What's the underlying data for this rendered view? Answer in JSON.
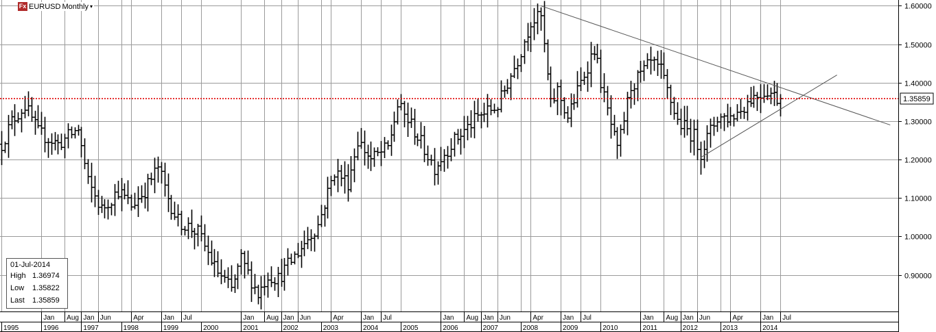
{
  "window": {
    "symbol": "EURUSD",
    "timeframe": "Monthly",
    "logo_text": "Fx",
    "dropdown_glyph": "▾"
  },
  "info_panel": {
    "date": "01-Jul-2014",
    "rows": [
      {
        "label": "High",
        "value": "1.36974"
      },
      {
        "label": "Low",
        "value": "1.35822"
      },
      {
        "label": "Last",
        "value": "1.35859"
      }
    ]
  },
  "colors": {
    "background": "#ffffff",
    "grid": "#9a9a9a",
    "bars": "#000000",
    "price_line": "#e00000",
    "trendline": "#555555"
  },
  "chart_data": {
    "type": "ohlc",
    "instrument": "EURUSD",
    "interval": "monthly",
    "price_axis": {
      "side": "right",
      "range": [
        0.805,
        1.615
      ],
      "ticks": [
        0.9,
        1.0,
        1.1,
        1.2,
        1.3,
        1.4,
        1.5,
        1.6
      ],
      "tick_labels": [
        "0.90000",
        "1.00000",
        "1.10000",
        "1.20000",
        "1.30000",
        "1.40000",
        "1.50000",
        "1.60000"
      ]
    },
    "time_axis": {
      "start": "1995-01",
      "end": "2017-06",
      "years": [
        "1995",
        "1996",
        "1997",
        "1998",
        "1999",
        "2000",
        "2001",
        "2002",
        "2003",
        "2004",
        "2005",
        "2006",
        "2007",
        "2008",
        "2009",
        "2010",
        "2011",
        "2012",
        "2013",
        "2014"
      ],
      "month_labels": [
        {
          "date": "1996-01",
          "label": "Jan"
        },
        {
          "date": "1996-08",
          "label": "Aug"
        },
        {
          "date": "1997-01",
          "label": "Jan"
        },
        {
          "date": "1997-06",
          "label": "Jun"
        },
        {
          "date": "1998-04",
          "label": "Apr"
        },
        {
          "date": "1999-01",
          "label": "Jan"
        },
        {
          "date": "1999-07",
          "label": "Jul"
        },
        {
          "date": "2001-01",
          "label": "Jan"
        },
        {
          "date": "2001-08",
          "label": "Aug"
        },
        {
          "date": "2002-01",
          "label": "Jan"
        },
        {
          "date": "2002-06",
          "label": "Jun"
        },
        {
          "date": "2003-04",
          "label": "Apr"
        },
        {
          "date": "2004-01",
          "label": "Jan"
        },
        {
          "date": "2004-07",
          "label": "Jul"
        },
        {
          "date": "2006-01",
          "label": "Jan"
        },
        {
          "date": "2006-08",
          "label": "Aug"
        },
        {
          "date": "2007-01",
          "label": "Jan"
        },
        {
          "date": "2007-06",
          "label": "Jun"
        },
        {
          "date": "2008-04",
          "label": "Apr"
        },
        {
          "date": "2009-01",
          "label": "Jan"
        },
        {
          "date": "2009-07",
          "label": "Jul"
        },
        {
          "date": "2011-01",
          "label": "Jan"
        },
        {
          "date": "2011-08",
          "label": "Aug"
        },
        {
          "date": "2012-01",
          "label": "Jan"
        },
        {
          "date": "2012-06",
          "label": "Jun"
        },
        {
          "date": "2013-04",
          "label": "Apr"
        },
        {
          "date": "2014-01",
          "label": "Jan"
        },
        {
          "date": "2014-07",
          "label": "Jul"
        }
      ]
    },
    "last_price": {
      "value": 1.35859,
      "label": "1.35859"
    },
    "trendlines": [
      {
        "name": "resistance",
        "from": {
          "date": "2008-07",
          "price": 1.6
        },
        "to": {
          "date": "2017-04",
          "price": 1.29
        }
      },
      {
        "name": "support",
        "from": {
          "date": "2012-07",
          "price": 1.205
        },
        "to": {
          "date": "2015-12",
          "price": 1.42
        }
      }
    ],
    "anchors": [
      {
        "date": "1995-01",
        "price": 1.24
      },
      {
        "date": "1995-04",
        "price": 1.3
      },
      {
        "date": "1995-08",
        "price": 1.34
      },
      {
        "date": "1995-12",
        "price": 1.27
      },
      {
        "date": "1996-06",
        "price": 1.24
      },
      {
        "date": "1996-12",
        "price": 1.28
      },
      {
        "date": "1997-03",
        "price": 1.14
      },
      {
        "date": "1997-07",
        "price": 1.07
      },
      {
        "date": "1997-12",
        "price": 1.12
      },
      {
        "date": "1998-04",
        "price": 1.08
      },
      {
        "date": "1998-08",
        "price": 1.12
      },
      {
        "date": "1998-12",
        "price": 1.18
      },
      {
        "date": "1999-03",
        "price": 1.1
      },
      {
        "date": "1999-06",
        "price": 1.04
      },
      {
        "date": "1999-12",
        "price": 1.01
      },
      {
        "date": "2000-05",
        "price": 0.92
      },
      {
        "date": "2000-10",
        "price": 0.86
      },
      {
        "date": "2001-01",
        "price": 0.94
      },
      {
        "date": "2001-06",
        "price": 0.85
      },
      {
        "date": "2001-09",
        "price": 0.9
      },
      {
        "date": "2001-12",
        "price": 0.89
      },
      {
        "date": "2002-06",
        "price": 0.96
      },
      {
        "date": "2002-12",
        "price": 1.03
      },
      {
        "date": "2003-05",
        "price": 1.17
      },
      {
        "date": "2003-09",
        "price": 1.14
      },
      {
        "date": "2003-12",
        "price": 1.25
      },
      {
        "date": "2004-04",
        "price": 1.2
      },
      {
        "date": "2004-09",
        "price": 1.23
      },
      {
        "date": "2004-12",
        "price": 1.34
      },
      {
        "date": "2005-04",
        "price": 1.29
      },
      {
        "date": "2005-11",
        "price": 1.18
      },
      {
        "date": "2006-04",
        "price": 1.24
      },
      {
        "date": "2006-12",
        "price": 1.31
      },
      {
        "date": "2007-06",
        "price": 1.34
      },
      {
        "date": "2007-12",
        "price": 1.46
      },
      {
        "date": "2008-04",
        "price": 1.56
      },
      {
        "date": "2008-07",
        "price": 1.57
      },
      {
        "date": "2008-10",
        "price": 1.34
      },
      {
        "date": "2008-12",
        "price": 1.38
      },
      {
        "date": "2009-03",
        "price": 1.31
      },
      {
        "date": "2009-11",
        "price": 1.49
      },
      {
        "date": "2010-02",
        "price": 1.36
      },
      {
        "date": "2010-06",
        "price": 1.22
      },
      {
        "date": "2010-10",
        "price": 1.39
      },
      {
        "date": "2011-04",
        "price": 1.45
      },
      {
        "date": "2011-07",
        "price": 1.43
      },
      {
        "date": "2011-12",
        "price": 1.3
      },
      {
        "date": "2012-05",
        "price": 1.26
      },
      {
        "date": "2012-07",
        "price": 1.22
      },
      {
        "date": "2012-12",
        "price": 1.31
      },
      {
        "date": "2013-04",
        "price": 1.31
      },
      {
        "date": "2013-07",
        "price": 1.33
      },
      {
        "date": "2013-10",
        "price": 1.36
      },
      {
        "date": "2014-03",
        "price": 1.38
      },
      {
        "date": "2014-06",
        "price": 1.36
      },
      {
        "date": "2014-07",
        "price": 1.3586
      }
    ]
  }
}
